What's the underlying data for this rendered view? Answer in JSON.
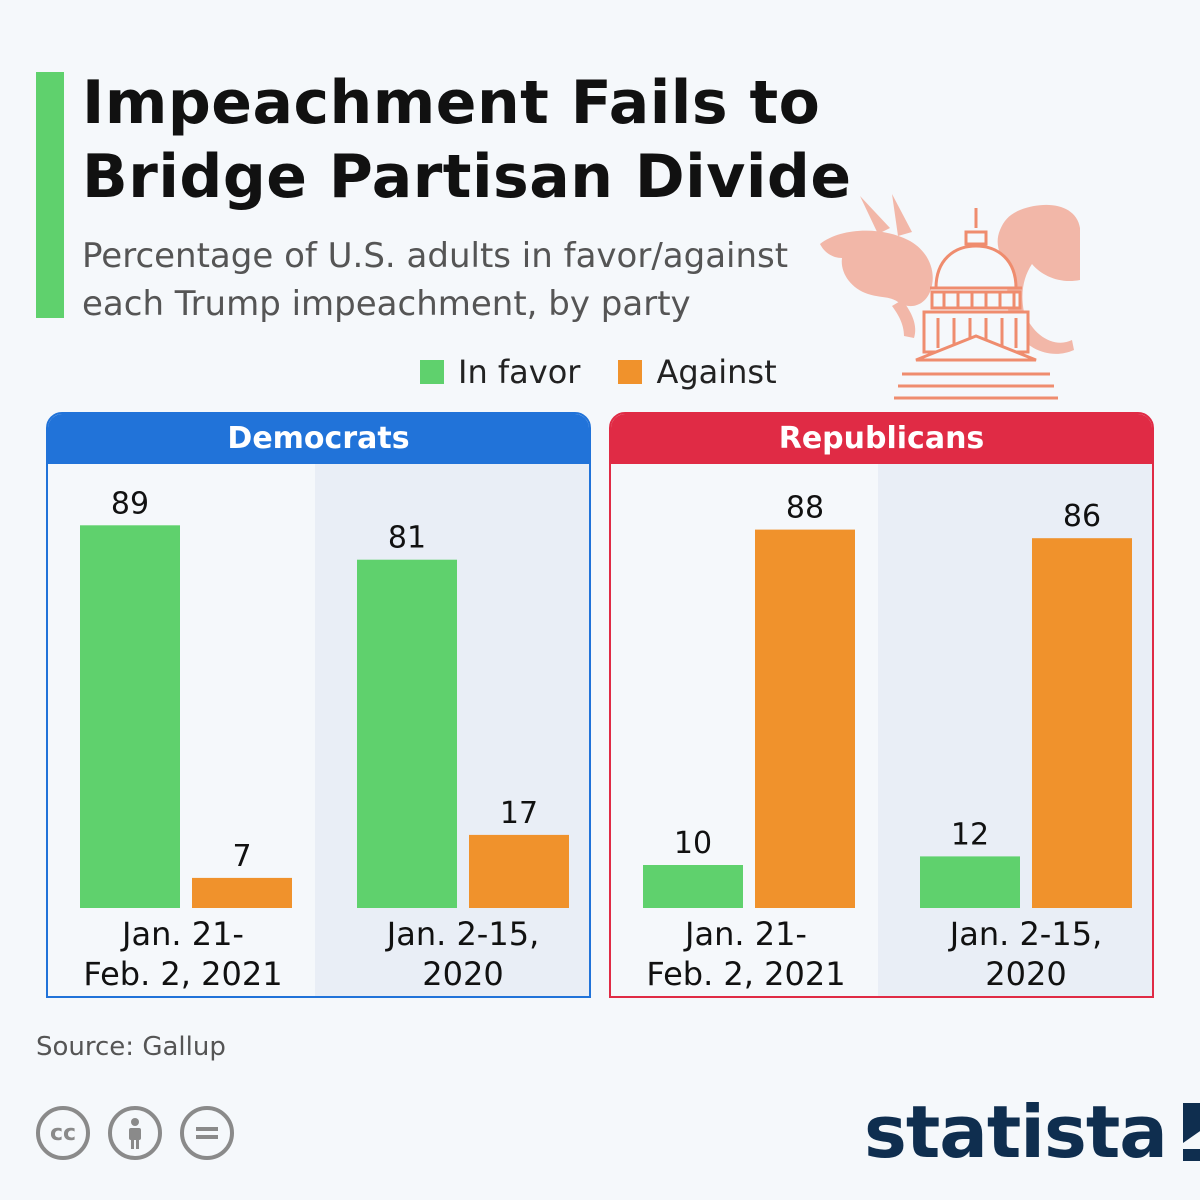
{
  "header": {
    "title": "Impeachment Fails to\nBridge Partisan Divide",
    "subtitle": "Percentage of U.S. adults in favor/against\neach Trump impeachment, by party"
  },
  "legend": {
    "in_favor": "In favor",
    "against": "Against"
  },
  "colors": {
    "in_favor": "#5fd16d",
    "against": "#f0922c",
    "democrats": "#2173d9",
    "republicans": "#e02b45",
    "accent": "#5fd16d",
    "illustration": "#f2b7a8"
  },
  "chart_data": {
    "type": "bar",
    "series_names": [
      "In favor",
      "Against"
    ],
    "ylim": [
      0,
      100
    ],
    "panels": [
      {
        "title": "Democrats",
        "groups": [
          {
            "label": "Jan. 21-\nFeb. 2, 2021",
            "in_favor": 89,
            "against": 7
          },
          {
            "label": "Jan. 2-15,\n2020",
            "in_favor": 81,
            "against": 17
          }
        ]
      },
      {
        "title": "Republicans",
        "groups": [
          {
            "label": "Jan. 21-\nFeb. 2, 2021",
            "in_favor": 10,
            "against": 88
          },
          {
            "label": "Jan. 2-15,\n2020",
            "in_favor": 12,
            "against": 86
          }
        ]
      }
    ]
  },
  "footer": {
    "source": "Source: Gallup",
    "license_icons": [
      "cc-icon",
      "attribution-icon",
      "no-derivatives-icon"
    ],
    "brand": "statista"
  }
}
